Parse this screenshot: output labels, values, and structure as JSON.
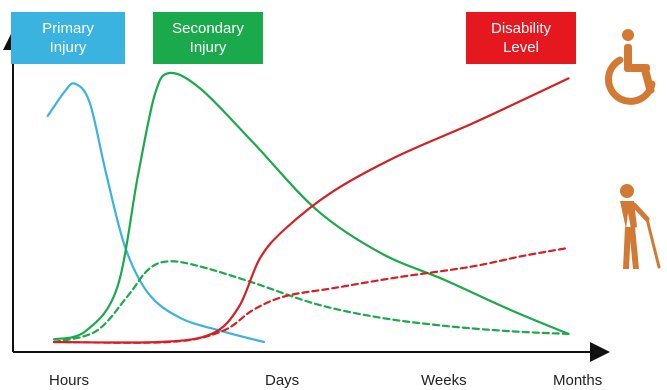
{
  "chart_data": {
    "type": "line",
    "title": "",
    "xlabel": "",
    "ylabel": "",
    "x_ticks": [
      "Hours",
      "Days",
      "Weeks",
      "Months"
    ],
    "xlim": [
      0,
      3
    ],
    "ylim": [
      0,
      1
    ],
    "grid": false,
    "series": [
      {
        "name": "Primary Injury",
        "color": "#3bb3e0",
        "style": "solid",
        "points": [
          [
            -0.13,
            0.84
          ],
          [
            -0.05,
            0.93
          ],
          [
            0.0,
            0.96
          ],
          [
            0.07,
            0.89
          ],
          [
            0.15,
            0.62
          ],
          [
            0.24,
            0.35
          ],
          [
            0.35,
            0.18
          ],
          [
            0.5,
            0.09
          ],
          [
            0.7,
            0.04
          ],
          [
            0.9,
            0.0
          ]
        ]
      },
      {
        "name": "Secondary Injury",
        "color": "#1aaa4b",
        "style": "solid",
        "points": [
          [
            -0.1,
            0.01
          ],
          [
            0.05,
            0.04
          ],
          [
            0.2,
            0.2
          ],
          [
            0.3,
            0.62
          ],
          [
            0.38,
            0.92
          ],
          [
            0.45,
            1.0
          ],
          [
            0.6,
            0.94
          ],
          [
            0.85,
            0.74
          ],
          [
            1.2,
            0.49
          ],
          [
            1.6,
            0.33
          ],
          [
            2.0,
            0.23
          ],
          [
            2.5,
            0.12
          ],
          [
            2.95,
            0.03
          ]
        ]
      },
      {
        "name": "Secondary Injury",
        "color": "#1aaa4b",
        "style": "dashed",
        "points": [
          [
            -0.1,
            0.0
          ],
          [
            0.1,
            0.04
          ],
          [
            0.25,
            0.17
          ],
          [
            0.35,
            0.27
          ],
          [
            0.45,
            0.3
          ],
          [
            0.6,
            0.28
          ],
          [
            0.85,
            0.22
          ],
          [
            1.2,
            0.14
          ],
          [
            1.6,
            0.09
          ],
          [
            2.0,
            0.06
          ],
          [
            2.5,
            0.04
          ],
          [
            2.95,
            0.03
          ]
        ]
      },
      {
        "name": "Disability Level",
        "color": "#d42024",
        "style": "solid",
        "points": [
          [
            -0.1,
            0.0
          ],
          [
            0.4,
            0.0
          ],
          [
            0.65,
            0.03
          ],
          [
            0.78,
            0.13
          ],
          [
            0.88,
            0.31
          ],
          [
            1.0,
            0.42
          ],
          [
            1.3,
            0.56
          ],
          [
            1.7,
            0.69
          ],
          [
            2.2,
            0.81
          ],
          [
            2.6,
            0.9
          ],
          [
            2.95,
            0.98
          ]
        ]
      },
      {
        "name": "Disability Level",
        "color": "#d42024",
        "style": "dashed",
        "points": [
          [
            -0.1,
            0.0
          ],
          [
            0.45,
            0.0
          ],
          [
            0.7,
            0.04
          ],
          [
            0.85,
            0.12
          ],
          [
            1.0,
            0.17
          ],
          [
            1.3,
            0.2
          ],
          [
            1.7,
            0.24
          ],
          [
            2.2,
            0.28
          ],
          [
            2.6,
            0.32
          ],
          [
            2.95,
            0.35
          ]
        ]
      }
    ],
    "legend": [
      {
        "label": "Primary\nInjury",
        "color": "#3bb3e0"
      },
      {
        "label": "Secondary\nInjury",
        "color": "#1aaa4b"
      },
      {
        "label": "Disability\nLevel",
        "color": "#d42024"
      }
    ],
    "icons": [
      {
        "name": "wheelchair-icon",
        "color": "#d27a34"
      },
      {
        "name": "walking-cane-person-icon",
        "color": "#d27a34"
      }
    ]
  }
}
